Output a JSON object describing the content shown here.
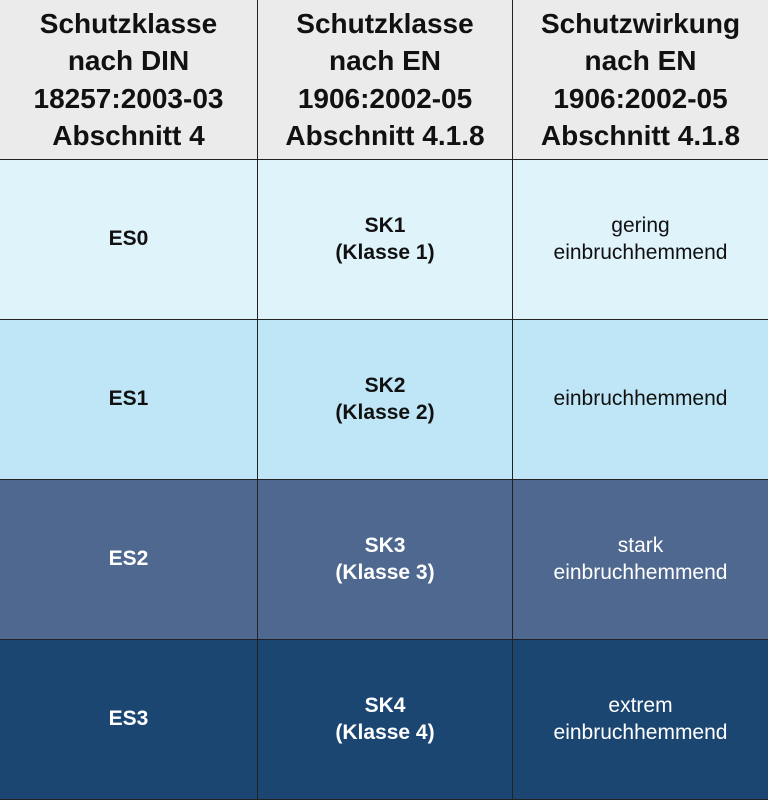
{
  "header": [
    [
      "Schutzklasse",
      "nach DIN",
      "18257:2003-03",
      "Abschnitt 4"
    ],
    [
      "Schutzklasse",
      "nach EN",
      "1906:2002-05",
      "Abschnitt 4.1.8"
    ],
    [
      "Schutzwirkung",
      "nach EN",
      "1906:2002-05",
      "Abschnitt 4.1.8"
    ]
  ],
  "rows": [
    {
      "din": "ES0",
      "en": [
        "SK1",
        "(Klasse 1)"
      ],
      "effect": [
        "gering",
        "einbruchhemmend"
      ],
      "color": "#dff3fb"
    },
    {
      "din": "ES1",
      "en": [
        "SK2",
        "(Klasse 2)"
      ],
      "effect": [
        "einbruchhemmend"
      ],
      "color": "#bfe6f6"
    },
    {
      "din": "ES2",
      "en": [
        "SK3",
        "(Klasse 3)"
      ],
      "effect": [
        "stark",
        "einbruchhemmend"
      ],
      "color": "#4f688f"
    },
    {
      "din": "ES3",
      "en": [
        "SK4",
        "(Klasse 4)"
      ],
      "effect": [
        "extrem",
        "einbruchhemmend"
      ],
      "color": "#1c4672"
    }
  ]
}
